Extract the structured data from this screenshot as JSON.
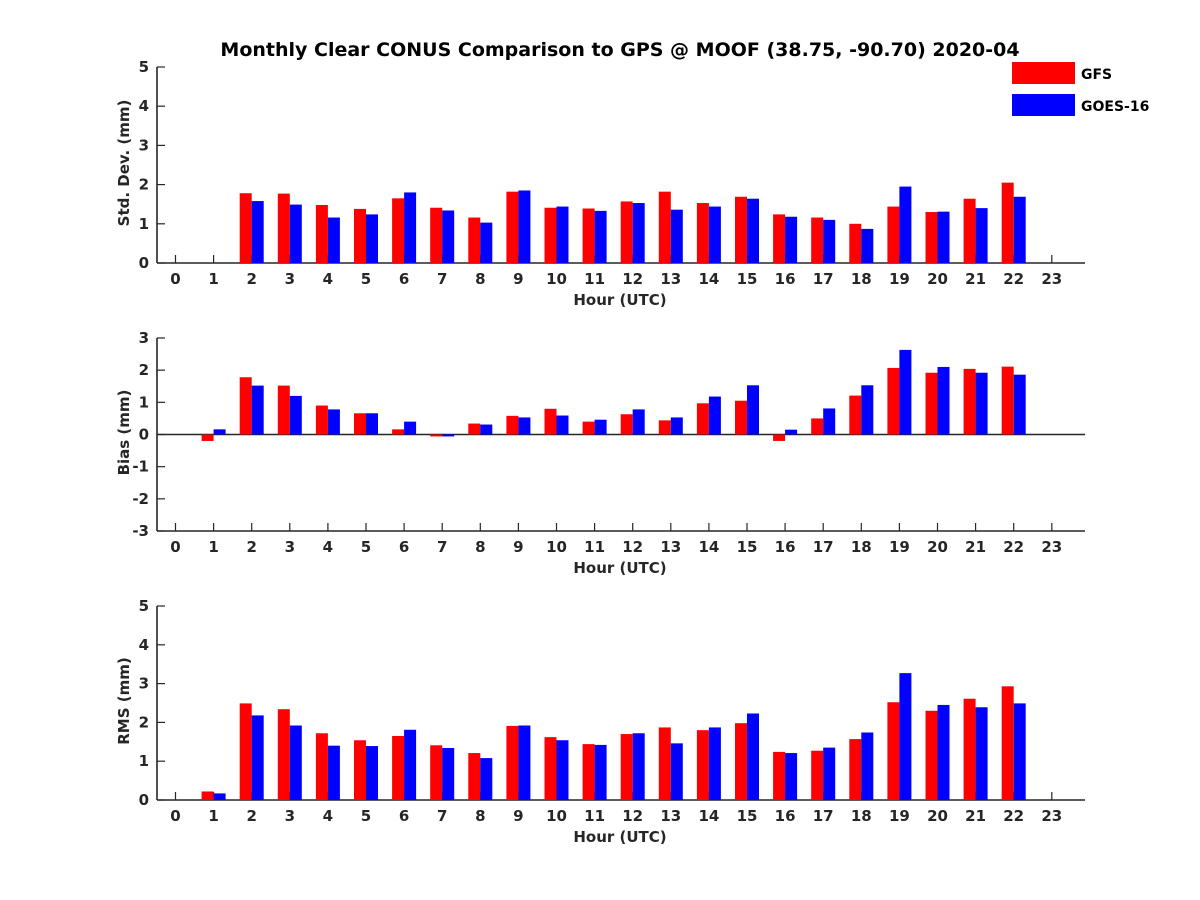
{
  "chart_data": {
    "title": "Monthly Clear CONUS Comparison to GPS @ MOOF (38.75, -90.70) 2020-04",
    "type": "bar",
    "legend": {
      "placement": "top-right",
      "entries": [
        {
          "name": "GFS",
          "color": "#ff0000"
        },
        {
          "name": "GOES-16",
          "color": "#0000ff"
        }
      ]
    },
    "panels": [
      {
        "type": "bar",
        "ylabel": "Std. Dev. (mm)",
        "xlabel": "Hour (UTC)",
        "ylim": [
          0,
          5
        ],
        "yticks": [
          "0",
          "1",
          "2",
          "3",
          "4",
          "5"
        ],
        "xticks": [
          "0",
          "1",
          "2",
          "3",
          "4",
          "5",
          "6",
          "7",
          "8",
          "9",
          "10",
          "11",
          "12",
          "13",
          "14",
          "15",
          "16",
          "17",
          "18",
          "19",
          "20",
          "21",
          "22",
          "23"
        ],
        "series": [
          {
            "name": "GFS",
            "color": "#ff0000",
            "values": [
              null,
              null,
              1.78,
              1.77,
              1.48,
              1.38,
              1.65,
              1.41,
              1.16,
              1.82,
              1.41,
              1.39,
              1.57,
              1.82,
              1.53,
              1.69,
              1.24,
              1.16,
              1.0,
              1.44,
              1.3,
              1.64,
              2.05,
              null
            ]
          },
          {
            "name": "GOES-16",
            "color": "#0000ff",
            "values": [
              null,
              null,
              1.58,
              1.49,
              1.16,
              1.24,
              1.8,
              1.34,
              1.03,
              1.85,
              1.44,
              1.33,
              1.53,
              1.36,
              1.44,
              1.64,
              1.18,
              1.1,
              0.87,
              1.95,
              1.31,
              1.4,
              1.69,
              null
            ]
          }
        ]
      },
      {
        "type": "bar",
        "ylabel": "Bias (mm)",
        "xlabel": "Hour (UTC)",
        "ylim": [
          -3,
          3
        ],
        "yticks": [
          "-3",
          "-2",
          "-1",
          "0",
          "1",
          "2",
          "3"
        ],
        "xticks": [
          "0",
          "1",
          "2",
          "3",
          "4",
          "5",
          "6",
          "7",
          "8",
          "9",
          "10",
          "11",
          "12",
          "13",
          "14",
          "15",
          "16",
          "17",
          "18",
          "19",
          "20",
          "21",
          "22",
          "23"
        ],
        "series": [
          {
            "name": "GFS",
            "color": "#ff0000",
            "values": [
              null,
              -0.2,
              1.78,
              1.52,
              0.9,
              0.66,
              0.16,
              -0.06,
              0.34,
              0.58,
              0.8,
              0.4,
              0.63,
              0.44,
              0.97,
              1.05,
              -0.2,
              0.5,
              1.21,
              2.07,
              1.92,
              2.04,
              2.11,
              null
            ]
          },
          {
            "name": "GOES-16",
            "color": "#0000ff",
            "values": [
              null,
              0.16,
              1.52,
              1.2,
              0.78,
              0.66,
              0.4,
              -0.06,
              0.31,
              0.53,
              0.59,
              0.46,
              0.78,
              0.53,
              1.18,
              1.53,
              0.15,
              0.81,
              1.53,
              2.63,
              2.1,
              1.92,
              1.86,
              null
            ]
          }
        ]
      },
      {
        "type": "bar",
        "ylabel": "RMS (mm)",
        "xlabel": "Hour (UTC)",
        "ylim": [
          0,
          5
        ],
        "yticks": [
          "0",
          "1",
          "2",
          "3",
          "4",
          "5"
        ],
        "xticks": [
          "0",
          "1",
          "2",
          "3",
          "4",
          "5",
          "6",
          "7",
          "8",
          "9",
          "10",
          "11",
          "12",
          "13",
          "14",
          "15",
          "16",
          "17",
          "18",
          "19",
          "20",
          "21",
          "22",
          "23"
        ],
        "series": [
          {
            "name": "GFS",
            "color": "#ff0000",
            "values": [
              null,
              0.22,
              2.49,
              2.34,
              1.72,
              1.54,
              1.65,
              1.41,
              1.21,
              1.91,
              1.62,
              1.44,
              1.7,
              1.87,
              1.8,
              1.98,
              1.24,
              1.27,
              1.57,
              2.52,
              2.3,
              2.61,
              2.93,
              null
            ]
          },
          {
            "name": "GOES-16",
            "color": "#0000ff",
            "values": [
              null,
              0.17,
              2.18,
              1.92,
              1.4,
              1.39,
              1.81,
              1.34,
              1.08,
              1.92,
              1.54,
              1.42,
              1.72,
              1.46,
              1.87,
              2.23,
              1.21,
              1.35,
              1.74,
              3.27,
              2.45,
              2.39,
              2.49,
              null
            ]
          }
        ]
      }
    ]
  }
}
